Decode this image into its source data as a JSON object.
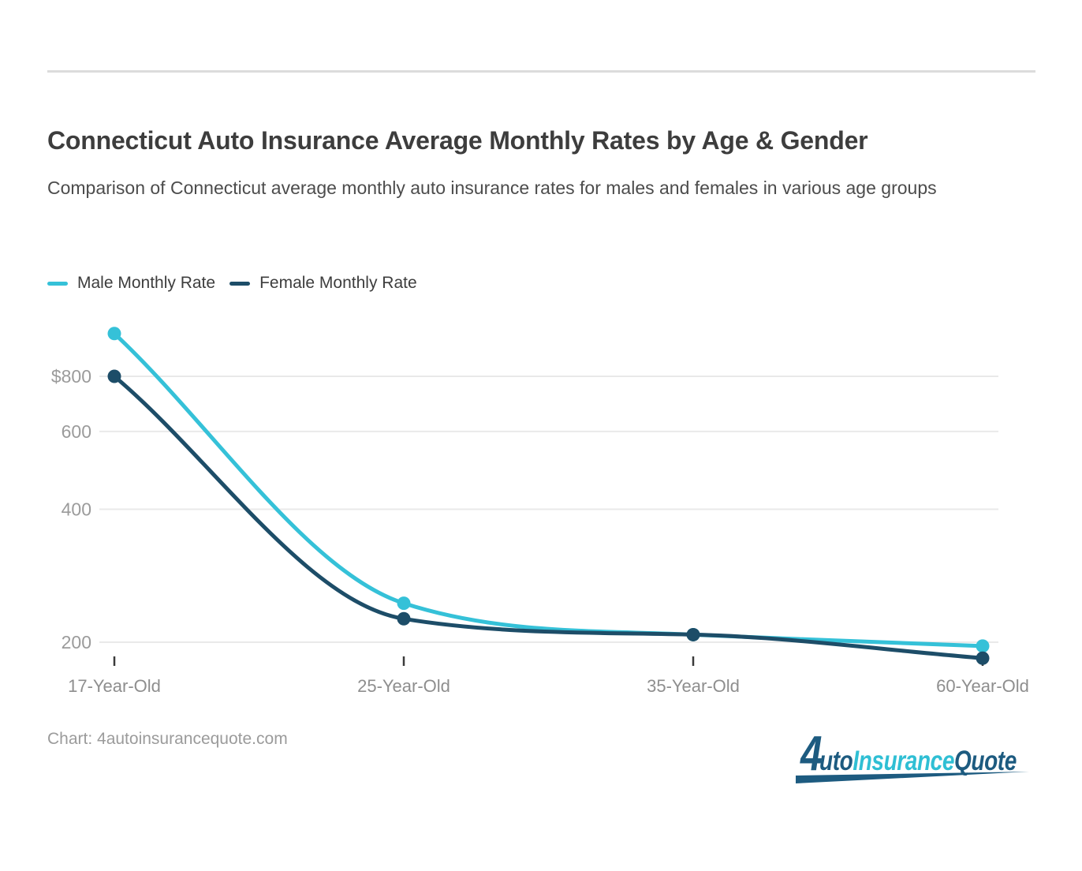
{
  "header": {
    "title": "Connecticut Auto Insurance Average Monthly Rates by Age & Gender",
    "subtitle": "Comparison of Connecticut average monthly auto insurance rates for males and females in various age groups"
  },
  "chart_data": {
    "type": "line",
    "title": "Connecticut Auto Insurance Average Monthly Rates by Age & Gender",
    "subtitle": "Comparison of Connecticut average monthly auto insurance rates for males and females in various age groups",
    "categories": [
      "17-Year-Old",
      "25-Year-Old",
      "35-Year-Old",
      "60-Year-Old"
    ],
    "series": [
      {
        "key": "male",
        "name": "Male Monthly Rate",
        "color": "#35c1d8",
        "values": [
          1000,
          245,
          208,
          196
        ]
      },
      {
        "key": "female",
        "name": "Female Monthly Rate",
        "color": "#1d4d68",
        "values": [
          800,
          226,
          208,
          184
        ]
      }
    ],
    "xlabel": "",
    "ylabel": "",
    "yscale": "log",
    "ylim": [
      170,
      1050
    ],
    "yticks": [
      800,
      600,
      400,
      200
    ],
    "ytick_labels": [
      "$800",
      "600",
      "400",
      "200"
    ],
    "grid": true,
    "legend_position": "top-left",
    "colors": {
      "gridline": "#e9e9e9",
      "y_label": "#9b9b9b",
      "x_label": "#8e8e8e",
      "tick": "#3a3a3a"
    }
  },
  "footer": {
    "credit": "Chart: 4autoinsurancequote.com",
    "logo": {
      "prefix": "4",
      "part1": "uto",
      "part2": "Insurance",
      "part3": "Quote",
      "navy": "#1d5b80",
      "cyan": "#2fbfd4"
    }
  }
}
